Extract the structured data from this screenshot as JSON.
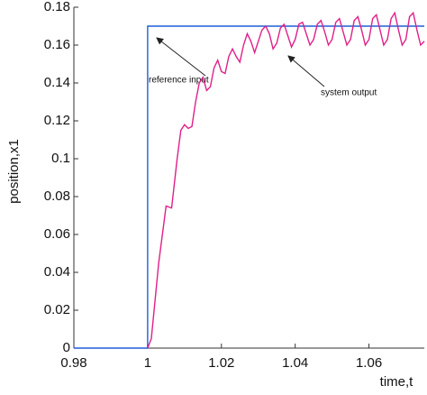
{
  "chart_data": {
    "type": "line",
    "xlabel": "time,t",
    "ylabel": "position,x1",
    "xlim": [
      0.98,
      1.075
    ],
    "xticks": [
      0.98,
      1,
      1.02,
      1.04,
      1.06
    ],
    "ylim": [
      0,
      0.18
    ],
    "yticks": [
      0,
      0.02,
      0.04,
      0.06,
      0.08,
      0.1,
      0.12,
      0.14,
      0.16,
      0.18
    ],
    "series": [
      {
        "name": "reference input",
        "color": "#1f5fd6",
        "x": [
          0.98,
          1,
          1,
          1.075
        ],
        "values": [
          0,
          0,
          0.17,
          0.17
        ]
      },
      {
        "name": "system output",
        "color": "#e0208a",
        "x": [
          1.0,
          1.001,
          1.002,
          1.003,
          1.004,
          1.005,
          1.0065,
          1.008,
          1.009,
          1.01,
          1.011,
          1.012,
          1.013,
          1.014,
          1.015,
          1.016,
          1.017,
          1.018,
          1.019,
          1.02,
          1.021,
          1.022,
          1.023,
          1.024,
          1.025,
          1.026,
          1.027,
          1.028,
          1.029,
          1.03,
          1.031,
          1.032,
          1.033,
          1.034,
          1.035,
          1.036,
          1.037,
          1.038,
          1.039,
          1.04,
          1.041,
          1.042,
          1.043,
          1.044,
          1.045,
          1.046,
          1.047,
          1.048,
          1.049,
          1.05,
          1.051,
          1.052,
          1.053,
          1.054,
          1.055,
          1.056,
          1.057,
          1.058,
          1.059,
          1.06,
          1.061,
          1.062,
          1.063,
          1.064,
          1.065,
          1.066,
          1.067,
          1.068,
          1.069,
          1.07,
          1.071,
          1.072,
          1.073,
          1.074,
          1.075
        ],
        "values": [
          0,
          0.005,
          0.025,
          0.045,
          0.06,
          0.075,
          0.074,
          0.1,
          0.115,
          0.118,
          0.116,
          0.117,
          0.13,
          0.14,
          0.143,
          0.136,
          0.138,
          0.148,
          0.152,
          0.146,
          0.145,
          0.154,
          0.158,
          0.154,
          0.151,
          0.16,
          0.166,
          0.162,
          0.156,
          0.162,
          0.168,
          0.17,
          0.166,
          0.158,
          0.161,
          0.169,
          0.171,
          0.165,
          0.159,
          0.163,
          0.171,
          0.172,
          0.166,
          0.16,
          0.163,
          0.171,
          0.173,
          0.167,
          0.16,
          0.163,
          0.172,
          0.174,
          0.167,
          0.16,
          0.163,
          0.173,
          0.175,
          0.168,
          0.16,
          0.163,
          0.174,
          0.176,
          0.168,
          0.16,
          0.163,
          0.174,
          0.177,
          0.168,
          0.16,
          0.163,
          0.175,
          0.177,
          0.168,
          0.16,
          0.162
        ]
      }
    ]
  }
}
